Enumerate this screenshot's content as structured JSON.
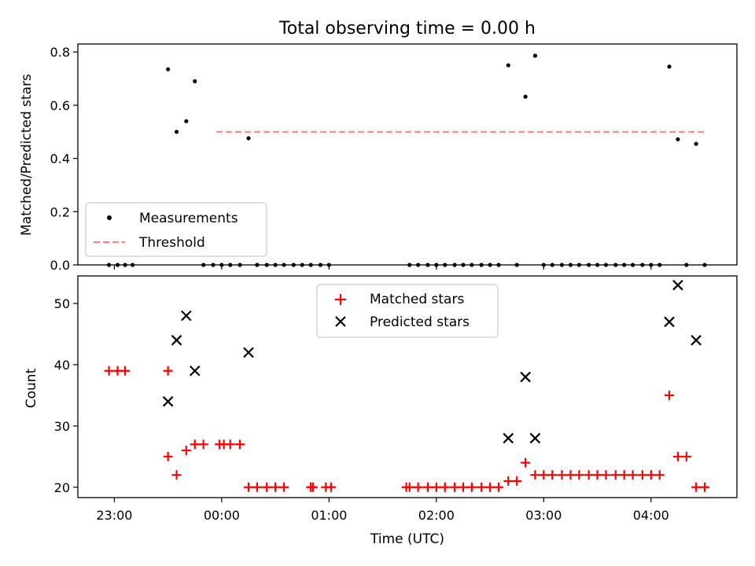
{
  "title": "Total observing time = 0.00 h",
  "colors": {
    "matched": "#ff0000",
    "predicted": "#000000",
    "threshold": "#ff7f7f",
    "measurement": "#000000"
  },
  "chart_data": [
    {
      "type": "scatter",
      "ylabel": "Matched/Predicted stars",
      "ylim": [
        0,
        0.83
      ],
      "yticks": [
        "0.0",
        "0.2",
        "0.4",
        "0.6",
        "0.8"
      ],
      "xlim": [
        -1.34,
        4.8
      ],
      "legend": {
        "placement": "lower-left",
        "entries": [
          "Measurements",
          "Threshold"
        ]
      },
      "threshold": {
        "name": "Threshold",
        "value": 0.5,
        "x": [
          -0.05,
          4.5
        ]
      },
      "series": [
        {
          "name": "Measurements",
          "x": [
            -1.05,
            -0.97,
            -0.9,
            -0.83,
            -0.5,
            -0.42,
            -0.33,
            -0.25,
            -0.17,
            -0.08,
            0.0,
            0.08,
            0.17,
            0.25,
            0.33,
            0.42,
            0.5,
            0.58,
            0.67,
            0.75,
            0.83,
            0.92,
            1.0,
            1.75,
            1.83,
            1.92,
            2.0,
            2.08,
            2.17,
            2.25,
            2.33,
            2.42,
            2.5,
            2.58,
            2.67,
            2.75,
            2.83,
            2.92,
            3.0,
            3.08,
            3.17,
            3.25,
            3.33,
            3.42,
            3.5,
            3.58,
            3.67,
            3.75,
            3.83,
            3.92,
            4.0,
            4.08,
            4.17,
            4.25,
            4.33,
            4.42,
            4.5
          ],
          "y": [
            0.0,
            0.0,
            0.0,
            0.0,
            0.735,
            0.5,
            0.54,
            0.69,
            0.0,
            0.0,
            0.0,
            0.0,
            0.0,
            0.476,
            0.0,
            0.0,
            0.0,
            0.0,
            0.0,
            0.0,
            0.0,
            0.0,
            0.0,
            0.0,
            0.0,
            0.0,
            0.0,
            0.0,
            0.0,
            0.0,
            0.0,
            0.0,
            0.0,
            0.0,
            0.75,
            0.0,
            0.632,
            0.786,
            0.0,
            0.0,
            0.0,
            0.0,
            0.0,
            0.0,
            0.0,
            0.0,
            0.0,
            0.0,
            0.0,
            0.0,
            0.0,
            0.0,
            0.745,
            0.472,
            0.0,
            0.455,
            0.0
          ]
        }
      ]
    },
    {
      "type": "scatter",
      "xlabel": "Time (UTC)",
      "ylabel": "Count",
      "ylim": [
        18.3,
        54.5
      ],
      "yticks": [
        "20",
        "30",
        "40",
        "50"
      ],
      "xlim": [
        -1.34,
        4.8
      ],
      "xticks": [
        "23:00",
        "00:00",
        "01:00",
        "02:00",
        "03:00",
        "04:00"
      ],
      "legend": {
        "placement": "upper-center",
        "entries": [
          "Matched stars",
          "Predicted stars"
        ]
      },
      "series": [
        {
          "name": "Matched stars",
          "marker": "+",
          "x": [
            -1.05,
            -0.97,
            -0.9,
            -0.5,
            -0.5,
            -0.42,
            -0.33,
            -0.25,
            -0.17,
            -0.02,
            0.02,
            0.08,
            0.17,
            0.25,
            0.33,
            0.42,
            0.5,
            0.58,
            0.83,
            0.85,
            0.97,
            1.02,
            1.72,
            1.75,
            1.83,
            1.92,
            2.0,
            2.08,
            2.17,
            2.25,
            2.33,
            2.42,
            2.5,
            2.58,
            2.67,
            2.75,
            2.83,
            2.92,
            3.0,
            3.08,
            3.17,
            3.25,
            3.33,
            3.42,
            3.5,
            3.58,
            3.67,
            3.75,
            3.83,
            3.92,
            4.0,
            4.08,
            4.17,
            4.25,
            4.33,
            4.42,
            4.5
          ],
          "y": [
            39,
            39,
            39,
            39,
            25,
            22,
            26,
            27,
            27,
            27,
            27,
            27,
            27,
            20,
            20,
            20,
            20,
            20,
            20,
            20,
            20,
            20,
            20,
            20,
            20,
            20,
            20,
            20,
            20,
            20,
            20,
            20,
            20,
            20,
            21,
            21,
            24,
            22,
            22,
            22,
            22,
            22,
            22,
            22,
            22,
            22,
            22,
            22,
            22,
            22,
            22,
            22,
            35,
            25,
            25,
            20,
            20
          ]
        },
        {
          "name": "Predicted stars",
          "marker": "x",
          "x": [
            -0.5,
            -0.42,
            -0.33,
            -0.25,
            0.25,
            2.67,
            2.83,
            2.92,
            4.17,
            4.25,
            4.42
          ],
          "y": [
            34,
            44,
            48,
            39,
            42,
            28,
            38,
            28,
            47,
            53,
            44
          ]
        }
      ]
    }
  ]
}
